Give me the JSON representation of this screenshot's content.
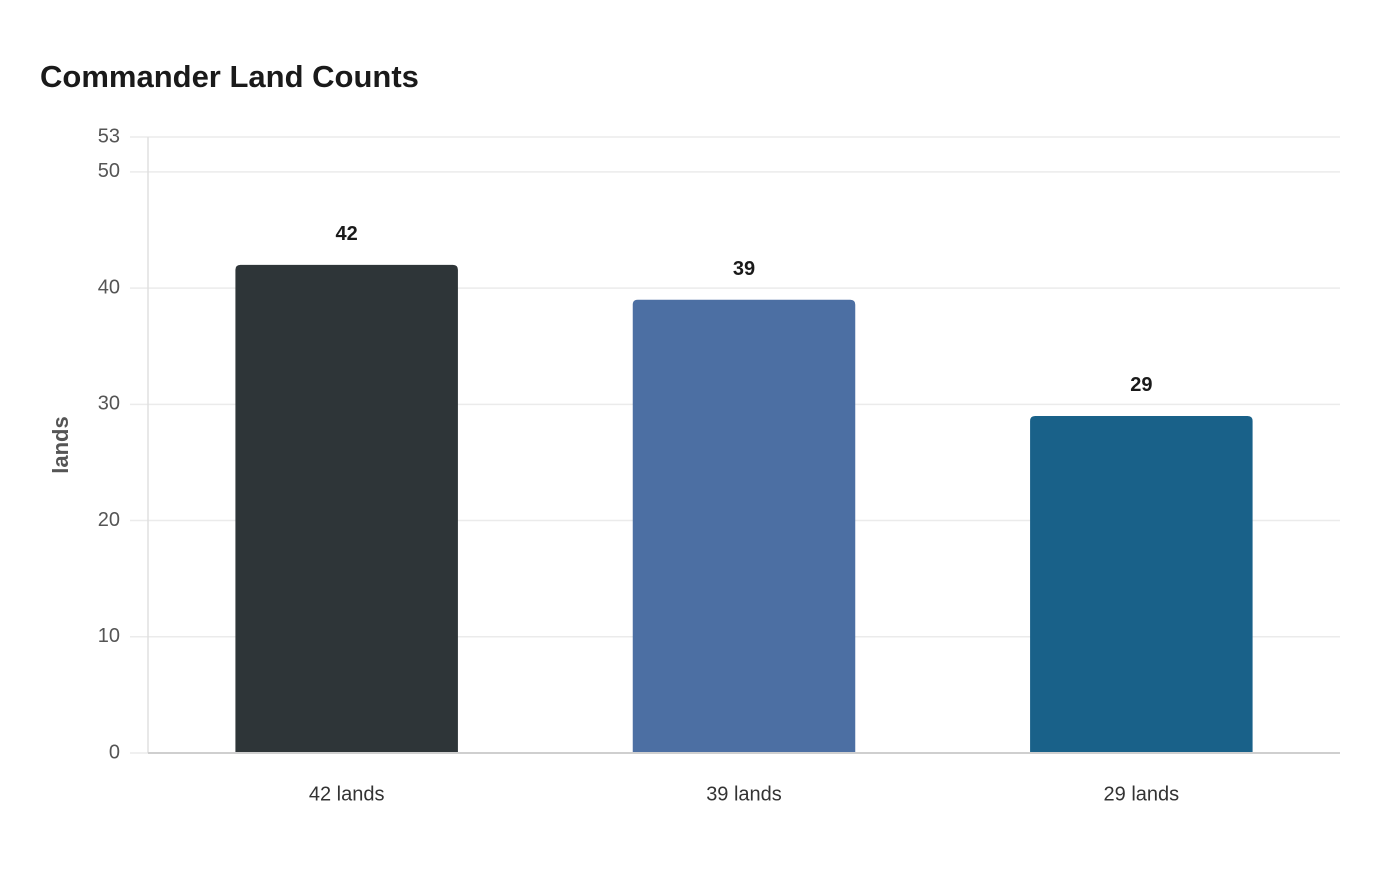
{
  "chart_data": {
    "type": "bar",
    "title": "Commander Land Counts",
    "y_label": "lands",
    "categories": [
      "42 lands",
      "39 lands",
      "29 lands"
    ],
    "values": [
      42,
      39,
      29
    ],
    "colors": [
      "#2e3538",
      "#4c6fa3",
      "#196189"
    ],
    "ylim": [
      0,
      53
    ],
    "yticks": [
      0,
      10,
      20,
      30,
      40,
      50,
      53
    ],
    "grid": true
  }
}
